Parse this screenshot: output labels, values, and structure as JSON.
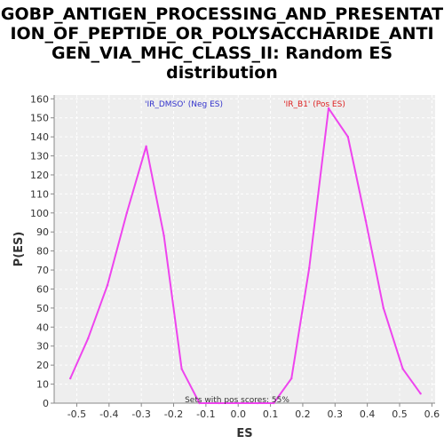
{
  "chart_data": {
    "type": "line",
    "title_lines": [
      "GOBP_ANTIGEN_PROCESSING_AND_PRESENTAT",
      "ION_OF_PEPTIDE_OR_POLYSACCHARIDE_ANTI",
      "GEN_VIA_MHC_CLASS_II: Random ES",
      "distribution"
    ],
    "xlabel": "ES",
    "ylabel": "P(ES)",
    "xlim": [
      -0.57,
      0.61
    ],
    "ylim": [
      0,
      162
    ],
    "x_ticks": [
      -0.5,
      -0.4,
      -0.3,
      -0.2,
      -0.1,
      0.0,
      0.1,
      0.2,
      0.3,
      0.4,
      0.5,
      0.6
    ],
    "x_tick_labels": [
      "-0.5",
      "-0.4",
      "-0.3",
      "-0.2",
      "-0.1",
      "0.0",
      "0.1",
      "0.2",
      "0.3",
      "0.4",
      "0.5",
      "0.6"
    ],
    "y_ticks": [
      0,
      10,
      20,
      30,
      40,
      50,
      60,
      70,
      80,
      90,
      100,
      110,
      120,
      130,
      140,
      150,
      160
    ],
    "y_tick_labels": [
      "0",
      "10",
      "20",
      "30",
      "40",
      "50",
      "60",
      "70",
      "80",
      "90",
      "100",
      "110",
      "120",
      "130",
      "140",
      "150",
      "160"
    ],
    "grid": true,
    "series": [
      {
        "color": "#ee44ee",
        "x": [
          -0.52,
          -0.465,
          -0.405,
          -0.345,
          -0.285,
          -0.23,
          -0.175,
          -0.12,
          -0.06,
          0.0,
          0.06,
          0.11,
          0.165,
          0.22,
          0.28,
          0.34,
          0.395,
          0.45,
          0.51,
          0.565
        ],
        "y": [
          13,
          34,
          62,
          100,
          135,
          88,
          18,
          0,
          0,
          0,
          0,
          0,
          13,
          71,
          155,
          140,
          96,
          50,
          18,
          5
        ]
      }
    ],
    "annotations": [
      {
        "id": "neg",
        "text": "'IR_DMSO' (Neg ES)",
        "color": "#3333cc"
      },
      {
        "id": "pos",
        "text": "'IR_B1' (Pos ES)",
        "color": "#dd2222"
      },
      {
        "id": "sets",
        "text": "Sets with pos scores: 55%",
        "color": "#333333"
      }
    ],
    "colors": {
      "plot_background": "#eeeeee",
      "grid": "#ffffff",
      "axis": "#888888"
    }
  }
}
